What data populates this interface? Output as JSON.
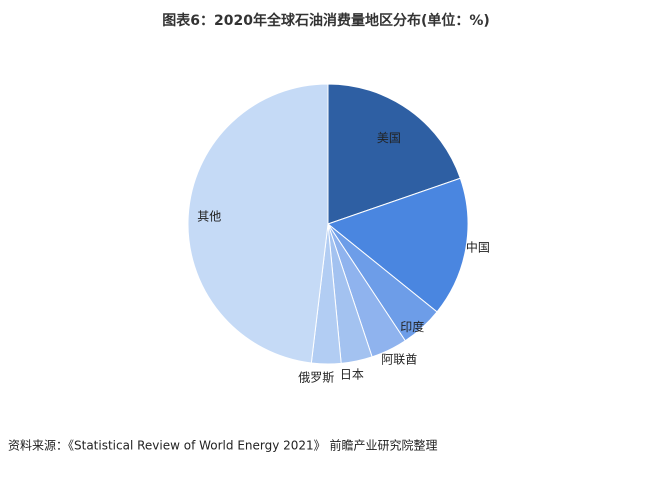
{
  "chart_data": {
    "type": "pie",
    "title": "图表6：2020年全球石油消费量地区分布(单位：%)",
    "categories": [
      "美国",
      "中国",
      "印度",
      "阿联酋",
      "日本",
      "俄罗斯",
      "其他"
    ],
    "values": [
      19.7,
      16.1,
      4.9,
      4.2,
      3.6,
      3.4,
      48.1
    ],
    "colors": [
      "#2e5fa3",
      "#4a86e0",
      "#6d9de8",
      "#8fb3ee",
      "#a3c2f0",
      "#b2cdf3",
      "#c5daf6"
    ],
    "source": "资料来源：《Statistical Review of World Energy 2021》 前瞻产业研究院整理"
  }
}
